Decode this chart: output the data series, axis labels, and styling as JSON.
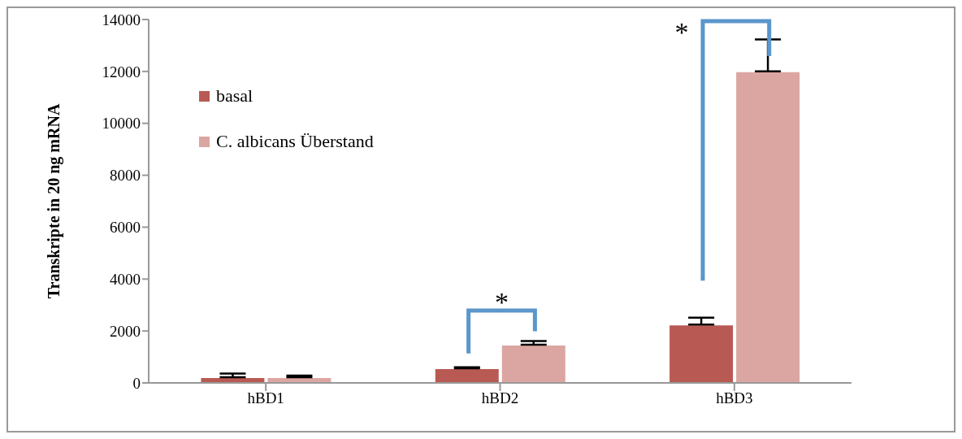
{
  "chart_data": {
    "type": "bar",
    "ylabel": "Transkripte in 20 ng mRNA",
    "categories": [
      "hBD1",
      "hBD2",
      "hBD3"
    ],
    "series": [
      {
        "name": "basal",
        "color": "#b85a53",
        "values": [
          220,
          560,
          2250
        ],
        "errors": [
          [
            220,
            360
          ],
          [
            560,
            600
          ],
          [
            2250,
            2510
          ]
        ]
      },
      {
        "name": "C. albicans Überstand",
        "color": "#dba6a2",
        "values": [
          220,
          1470,
          12000
        ],
        "errors": [
          [
            220,
            280
          ],
          [
            1470,
            1610
          ],
          [
            12000,
            13230
          ]
        ]
      }
    ],
    "ylim": [
      0,
      14000
    ],
    "yticks": [
      0,
      2000,
      4000,
      6000,
      8000,
      10000,
      12000,
      14000
    ],
    "grid": false,
    "legend": "top left",
    "annotations": [
      "*",
      "*"
    ]
  }
}
